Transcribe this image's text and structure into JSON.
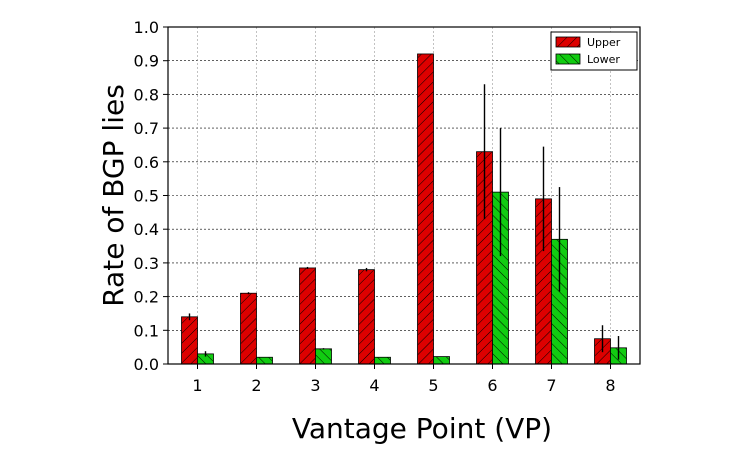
{
  "chart_data": {
    "type": "bar",
    "title": "",
    "xlabel": "Vantage Point (VP)",
    "ylabel": "Rate of BGP lies",
    "categories": [
      "1",
      "2",
      "3",
      "4",
      "5",
      "6",
      "7",
      "8"
    ],
    "ylim": [
      0.0,
      1.0
    ],
    "yticks": [
      "0.0",
      "0.1",
      "0.2",
      "0.3",
      "0.4",
      "0.5",
      "0.6",
      "0.7",
      "0.8",
      "0.9",
      "1.0"
    ],
    "grid": true,
    "legend_position": "top-right",
    "series": [
      {
        "name": "Upper",
        "color": "#dd0000",
        "hatch": "forward-diagonal",
        "values": [
          0.14,
          0.21,
          0.285,
          0.28,
          0.92,
          0.63,
          0.49,
          0.075
        ],
        "error": [
          0.01,
          0.003,
          0.003,
          0.005,
          0.0,
          0.2,
          0.155,
          0.04
        ]
      },
      {
        "name": "Lower",
        "color": "#11cc11",
        "hatch": "back-diagonal",
        "values": [
          0.03,
          0.02,
          0.045,
          0.02,
          0.022,
          0.51,
          0.37,
          0.048
        ],
        "error": [
          0.008,
          0.0,
          0.002,
          0.0,
          0.0,
          0.19,
          0.155,
          0.035
        ]
      }
    ]
  }
}
